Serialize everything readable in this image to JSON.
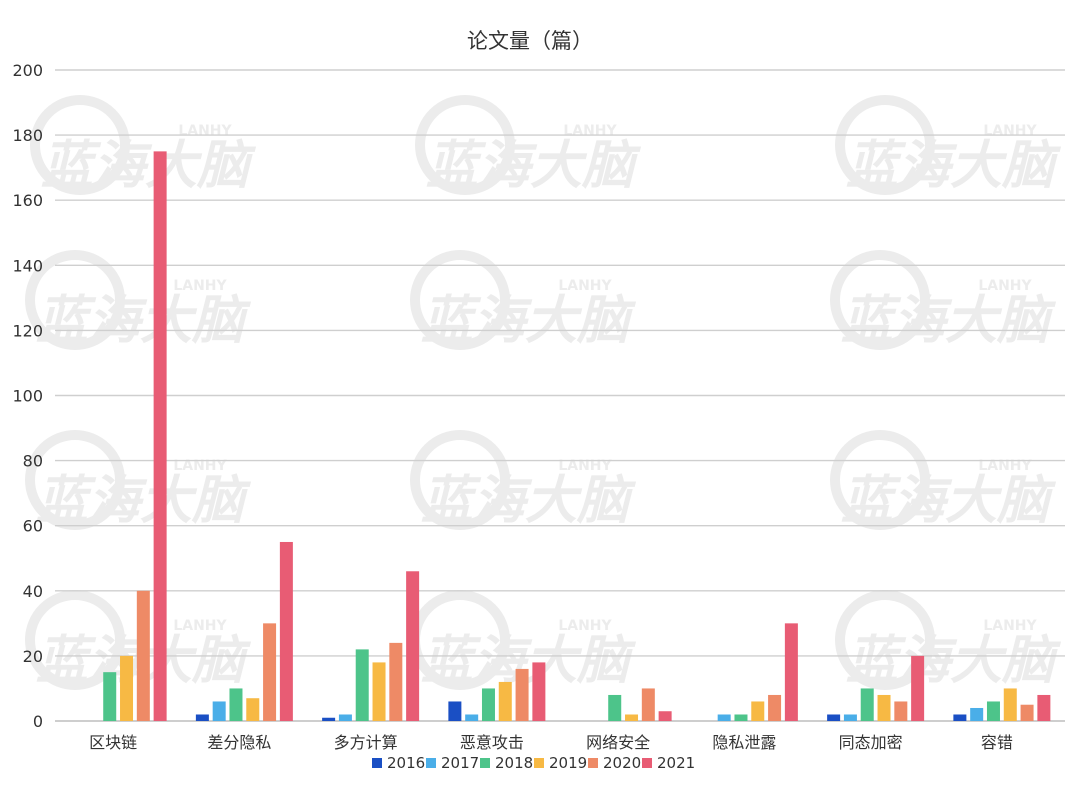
{
  "watermark": {
    "text": "蓝海大脑",
    "sub": "LANHY",
    "color": "#ececec"
  },
  "chart_data": {
    "type": "bar",
    "title": "论文量（篇）",
    "categories": [
      "区块链",
      "差分隐私",
      "多方计算",
      "恶意攻击",
      "网络安全",
      "隐私泄露",
      "同态加密",
      "容错"
    ],
    "series": [
      {
        "name": "2016",
        "color": "#1a4fc4",
        "values": [
          0,
          2,
          1,
          6,
          0,
          0,
          2,
          2
        ]
      },
      {
        "name": "2017",
        "color": "#4aaee8",
        "values": [
          0,
          6,
          2,
          2,
          0,
          2,
          2,
          4
        ]
      },
      {
        "name": "2018",
        "color": "#4dc48a",
        "values": [
          15,
          10,
          22,
          10,
          8,
          2,
          10,
          6
        ]
      },
      {
        "name": "2019",
        "color": "#f7b944",
        "values": [
          20,
          7,
          18,
          12,
          2,
          6,
          8,
          10
        ]
      },
      {
        "name": "2020",
        "color": "#ee8a66",
        "values": [
          40,
          30,
          24,
          16,
          10,
          8,
          6,
          5
        ]
      },
      {
        "name": "2021",
        "color": "#e85c74",
        "values": [
          175,
          55,
          46,
          18,
          3,
          30,
          20,
          8
        ]
      }
    ],
    "ylim": [
      0,
      200
    ],
    "yticks": [
      "0",
      "20",
      "40",
      "60",
      "80",
      "100",
      "120",
      "140",
      "160",
      "180",
      "200"
    ],
    "grid": true,
    "legend": "bottom"
  }
}
